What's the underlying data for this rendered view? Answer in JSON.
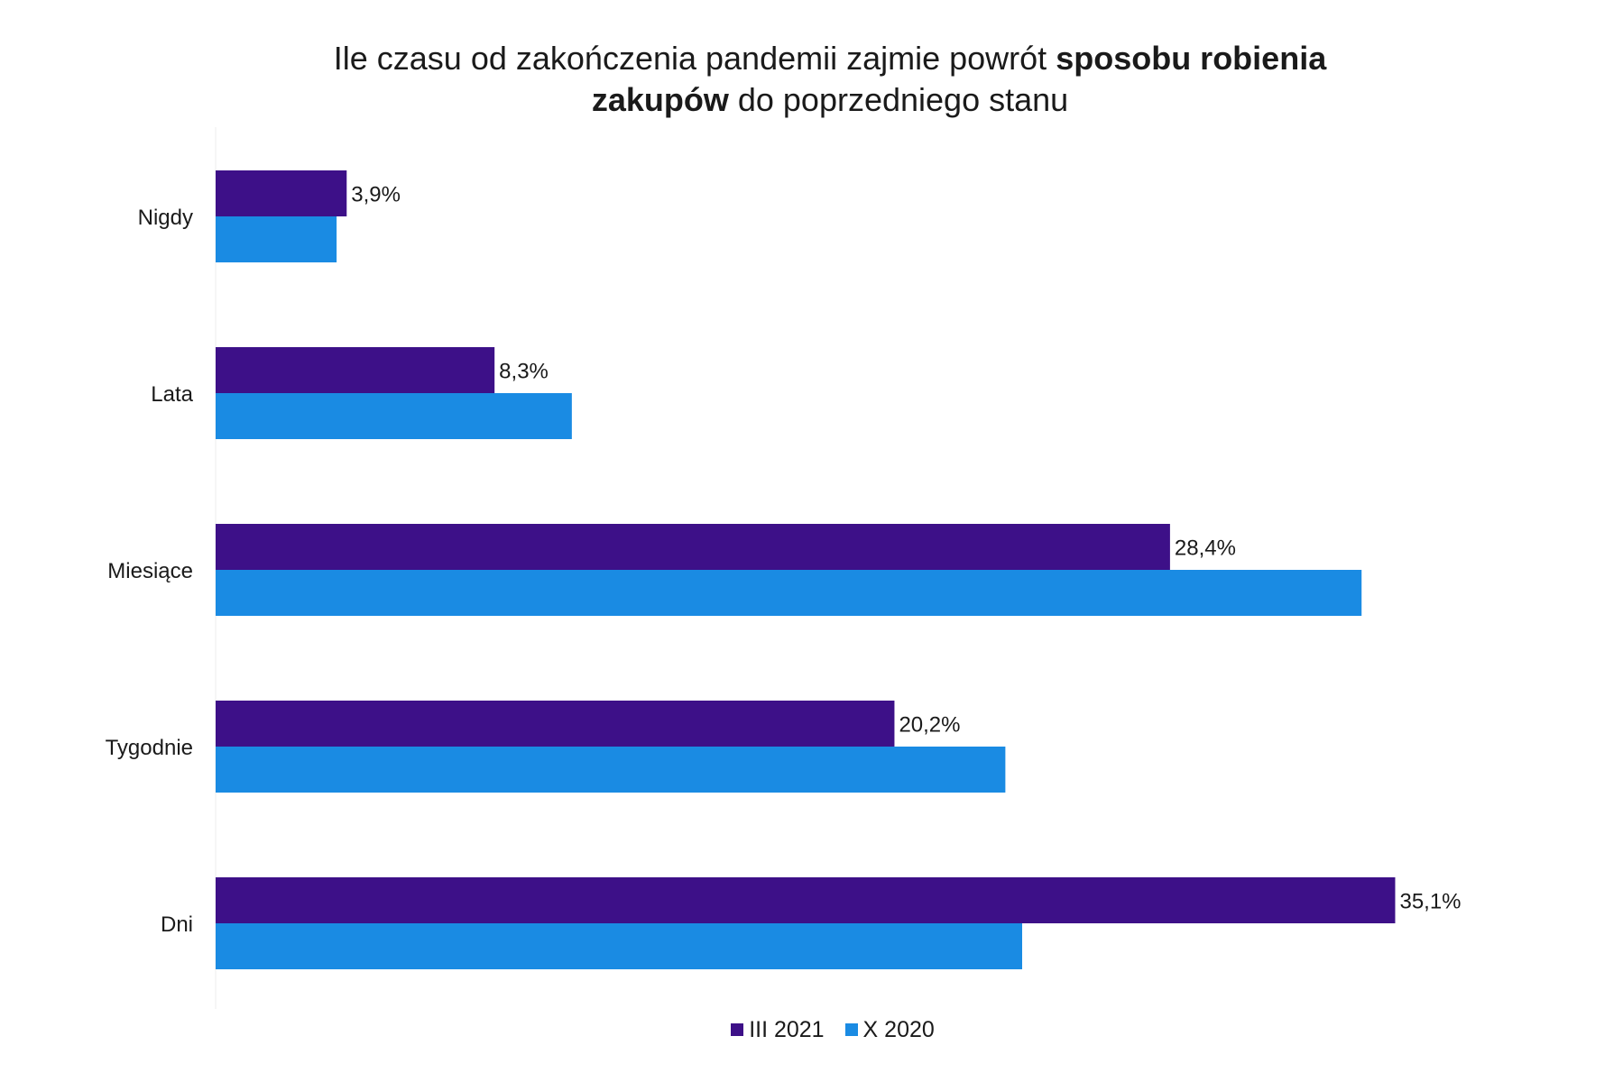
{
  "chart_data": {
    "type": "bar",
    "orientation": "horizontal",
    "title_parts": [
      "Ile czasu od zakończenia pandemii zajmie powrót ",
      "sposobu robienia",
      "zakupów",
      " do poprzedniego stanu"
    ],
    "categories": [
      "Nigdy",
      "Lata",
      "Miesiące",
      "Tygodnie",
      "Dni"
    ],
    "series": [
      {
        "name": "III 2021",
        "color": "#3d1088",
        "values": [
          3.9,
          8.3,
          28.4,
          20.2,
          35.1
        ],
        "labels": [
          "3,9%",
          "8,3%",
          "28,4%",
          "20,2%",
          "35,1%"
        ]
      },
      {
        "name": "X 2020",
        "color": "#1a8be3",
        "values": [
          3.6,
          10.6,
          34.1,
          23.5,
          24.0
        ]
      }
    ],
    "xlim": [
      0,
      40
    ],
    "grid": false,
    "legend_position": "bottom"
  }
}
